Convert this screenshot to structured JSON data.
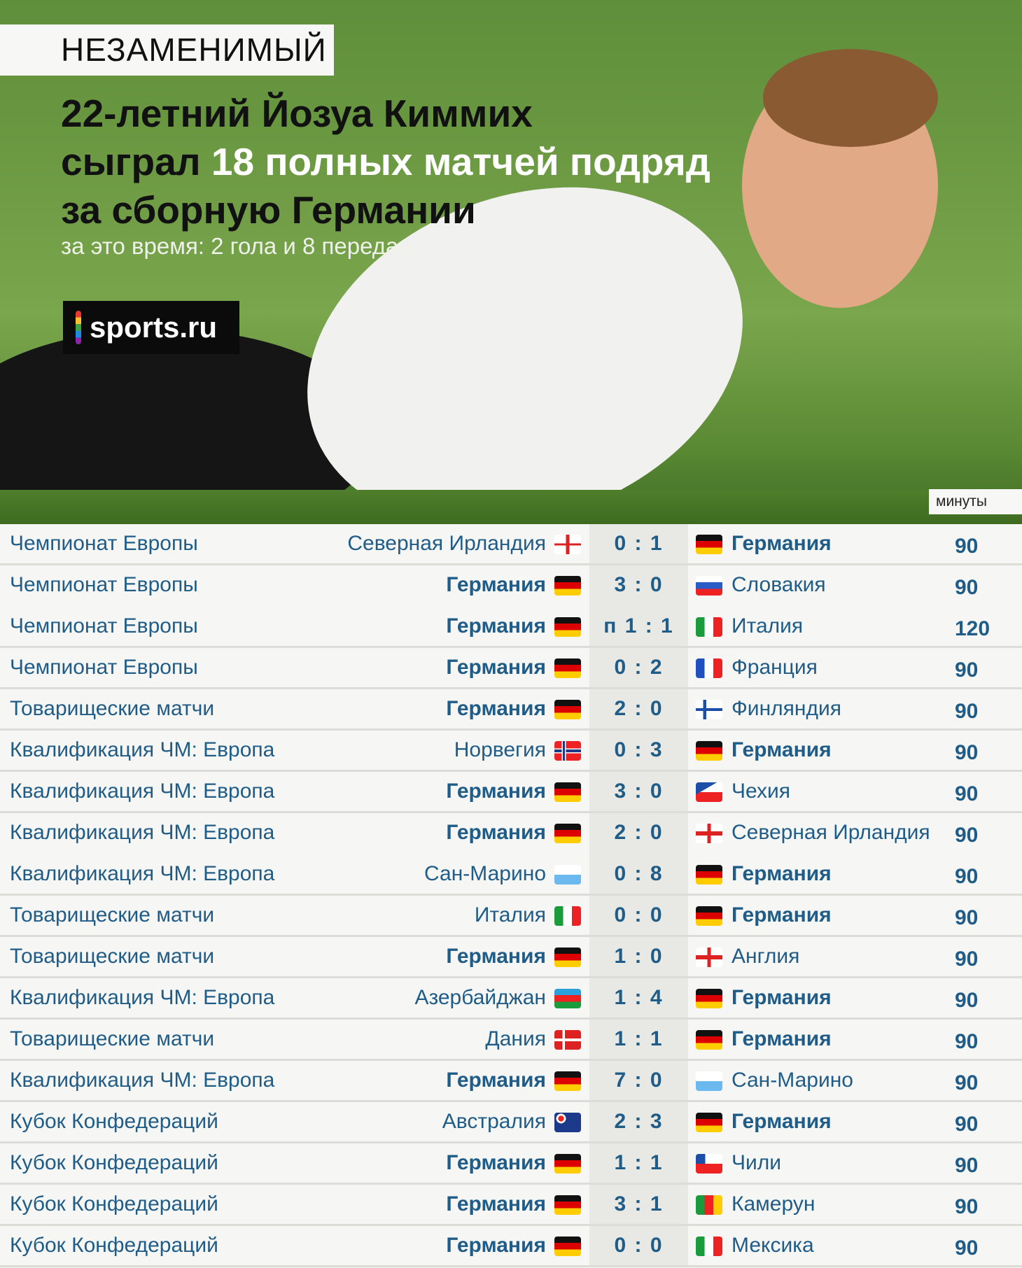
{
  "header": {
    "tag": "НЕЗАМЕНИМЫЙ",
    "title_line1": "22-летний Йозуа Киммих",
    "title_line2_pre": "сыграл ",
    "title_line2_highlight": "18 полных матчей подряд",
    "title_line3": "за сборную Германии",
    "subtitle": "за это время: 2 гола и 8 передач",
    "logo": "sports.ru",
    "minutes_label": "минуты"
  },
  "colors": {
    "text": "#1f5c87",
    "highlight": "#ffffff",
    "score_bg": "#e8e8e4"
  },
  "matches": [
    {
      "tournament": "Чемпионат Европы",
      "home": "Северная Ирландия",
      "home_flag": "nir",
      "home_bold": false,
      "score": "0 : 1",
      "away": "Германия",
      "away_flag": "ger",
      "away_bold": true,
      "minutes": "90"
    },
    {
      "tournament": "Чемпионат Европы",
      "home": "Германия",
      "home_flag": "ger",
      "home_bold": true,
      "score": "3 : 0",
      "away": "Словакия",
      "away_flag": "svk",
      "away_bold": false,
      "minutes": "90",
      "nob": true
    },
    {
      "tournament": "Чемпионат Европы",
      "home": "Германия",
      "home_flag": "ger",
      "home_bold": true,
      "score": "п 1 : 1",
      "away": "Италия",
      "away_flag": "ita",
      "away_bold": false,
      "minutes": "120"
    },
    {
      "tournament": "Чемпионат Европы",
      "home": "Германия",
      "home_flag": "ger",
      "home_bold": true,
      "score": "0 : 2",
      "away": "Франция",
      "away_flag": "fra",
      "away_bold": false,
      "minutes": "90"
    },
    {
      "tournament": "Товарищеские матчи",
      "home": "Германия",
      "home_flag": "ger",
      "home_bold": true,
      "score": "2 : 0",
      "away": "Финляндия",
      "away_flag": "fin",
      "away_bold": false,
      "minutes": "90"
    },
    {
      "tournament": "Квалификация ЧМ: Европа",
      "home": "Норвегия",
      "home_flag": "nor",
      "home_bold": false,
      "score": "0 : 3",
      "away": "Германия",
      "away_flag": "ger",
      "away_bold": true,
      "minutes": "90"
    },
    {
      "tournament": "Квалификация ЧМ: Европа",
      "home": "Германия",
      "home_flag": "ger",
      "home_bold": true,
      "score": "3 : 0",
      "away": "Чехия",
      "away_flag": "cze",
      "away_bold": false,
      "minutes": "90"
    },
    {
      "tournament": "Квалификация ЧМ: Европа",
      "home": "Германия",
      "home_flag": "ger",
      "home_bold": true,
      "score": "2 : 0",
      "away": "Северная Ирландия",
      "away_flag": "eng",
      "away_bold": false,
      "minutes": "90",
      "nob": true
    },
    {
      "tournament": "Квалификация ЧМ: Европа",
      "home": "Сан-Марино",
      "home_flag": "smr",
      "home_bold": false,
      "score": "0 : 8",
      "away": "Германия",
      "away_flag": "ger",
      "away_bold": true,
      "minutes": "90"
    },
    {
      "tournament": "Товарищеские матчи",
      "home": "Италия",
      "home_flag": "ita",
      "home_bold": false,
      "score": "0 : 0",
      "away": "Германия",
      "away_flag": "ger",
      "away_bold": true,
      "minutes": "90"
    },
    {
      "tournament": "Товарищеские матчи",
      "home": "Германия",
      "home_flag": "ger",
      "home_bold": true,
      "score": "1 : 0",
      "away": "Англия",
      "away_flag": "eng",
      "away_bold": false,
      "minutes": "90"
    },
    {
      "tournament": "Квалификация ЧМ: Европа",
      "home": "Азербайджан",
      "home_flag": "aze",
      "home_bold": false,
      "score": "1 : 4",
      "away": "Германия",
      "away_flag": "ger",
      "away_bold": true,
      "minutes": "90"
    },
    {
      "tournament": "Товарищеские матчи",
      "home": "Дания",
      "home_flag": "den",
      "home_bold": false,
      "score": "1 : 1",
      "away": "Германия",
      "away_flag": "ger",
      "away_bold": true,
      "minutes": "90"
    },
    {
      "tournament": "Квалификация ЧМ: Европа",
      "home": "Германия",
      "home_flag": "ger",
      "home_bold": true,
      "score": "7 : 0",
      "away": "Сан-Марино",
      "away_flag": "smr",
      "away_bold": false,
      "minutes": "90"
    },
    {
      "tournament": "Кубок Конфедераций",
      "home": "Австралия",
      "home_flag": "aus",
      "home_bold": false,
      "score": "2 : 3",
      "away": "Германия",
      "away_flag": "ger",
      "away_bold": true,
      "minutes": "90"
    },
    {
      "tournament": "Кубок Конфедераций",
      "home": "Германия",
      "home_flag": "ger",
      "home_bold": true,
      "score": "1 : 1",
      "away": "Чили",
      "away_flag": "chi",
      "away_bold": false,
      "minutes": "90"
    },
    {
      "tournament": "Кубок Конфедераций",
      "home": "Германия",
      "home_flag": "ger",
      "home_bold": true,
      "score": "3 : 1",
      "away": "Камерун",
      "away_flag": "cmr",
      "away_bold": false,
      "minutes": "90"
    },
    {
      "tournament": "Кубок Конфедераций",
      "home": "Германия",
      "home_flag": "ger",
      "home_bold": true,
      "score": "0 : 0",
      "away": "Мексика",
      "away_flag": "mex",
      "away_bold": false,
      "minutes": "90"
    }
  ]
}
